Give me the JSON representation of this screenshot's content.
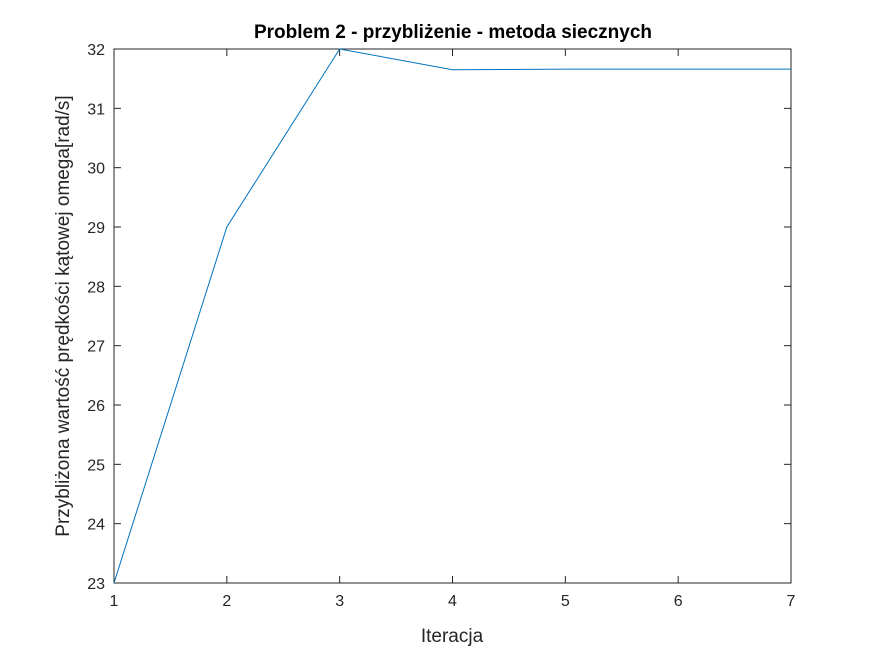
{
  "chart_data": {
    "type": "line",
    "title": "Problem 2 - przybliżenie - metoda siecznych",
    "xlabel": "Iteracja",
    "ylabel": "Przybliżona wartość prędkości kątowej omega[rad/s]",
    "xlim": [
      1,
      7
    ],
    "ylim": [
      23,
      32
    ],
    "x_ticks": [
      "1",
      "2",
      "3",
      "4",
      "5",
      "6",
      "7"
    ],
    "y_ticks": [
      "23",
      "24",
      "25",
      "26",
      "27",
      "28",
      "29",
      "30",
      "31",
      "32"
    ],
    "grid": false,
    "series": [
      {
        "x": [
          1,
          2,
          3,
          4,
          5,
          6,
          7
        ],
        "values": [
          23,
          29,
          32,
          31.65,
          31.66,
          31.66,
          31.66
        ],
        "color": "#0072BD"
      }
    ]
  }
}
